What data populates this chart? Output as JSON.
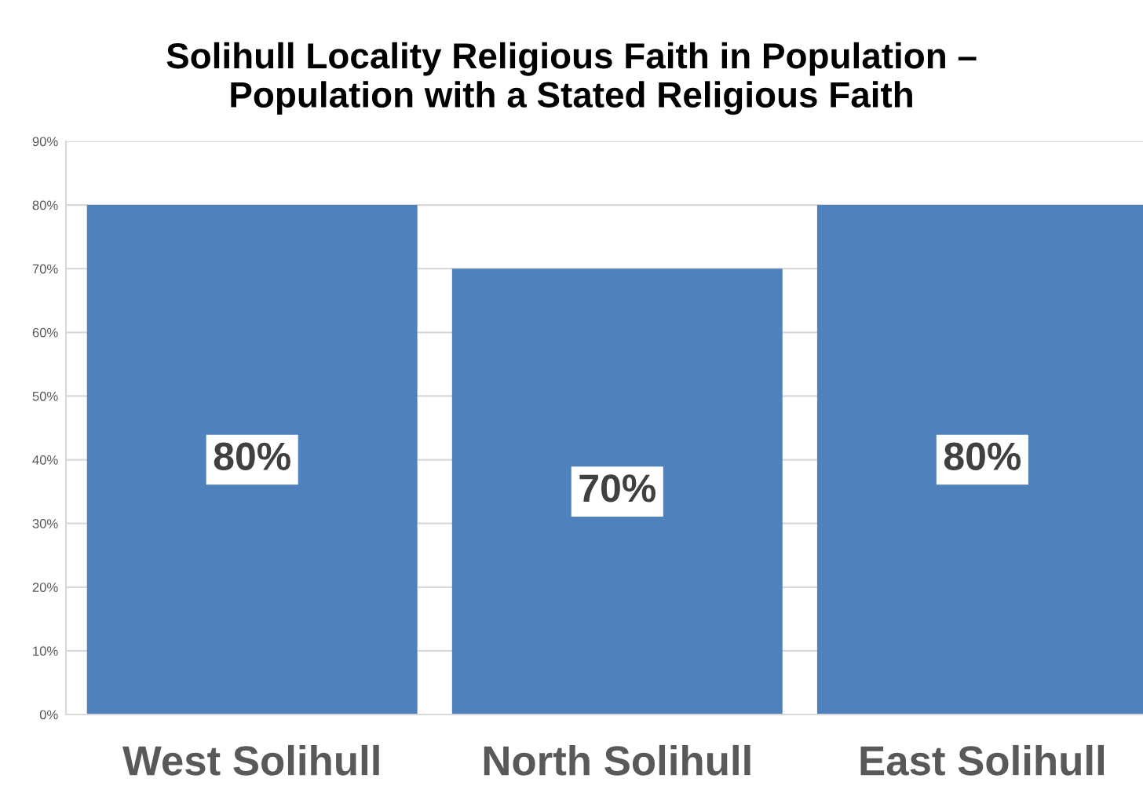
{
  "chart_data": {
    "type": "bar",
    "title": "Solihull Locality Religious Faith in Population –\nPopulation with a Stated Religious Faith",
    "categories": [
      "West Solihull",
      "North Solihull",
      "East Solihull"
    ],
    "values": [
      80,
      70,
      80
    ],
    "value_labels": [
      "80%",
      "70%",
      "80%"
    ],
    "color": "#4f81bd",
    "ylim": [
      0,
      90
    ],
    "yticks": [
      {
        "value": 0,
        "label": "0%"
      },
      {
        "value": 10,
        "label": "10%"
      },
      {
        "value": 20,
        "label": "20%"
      },
      {
        "value": 30,
        "label": "30%"
      },
      {
        "value": 40,
        "label": "40%"
      },
      {
        "value": 50,
        "label": "50%"
      },
      {
        "value": 60,
        "label": "60%"
      },
      {
        "value": 70,
        "label": "70%"
      },
      {
        "value": 80,
        "label": "80%"
      },
      {
        "value": 90,
        "label": "90%"
      }
    ],
    "grid": "y"
  }
}
